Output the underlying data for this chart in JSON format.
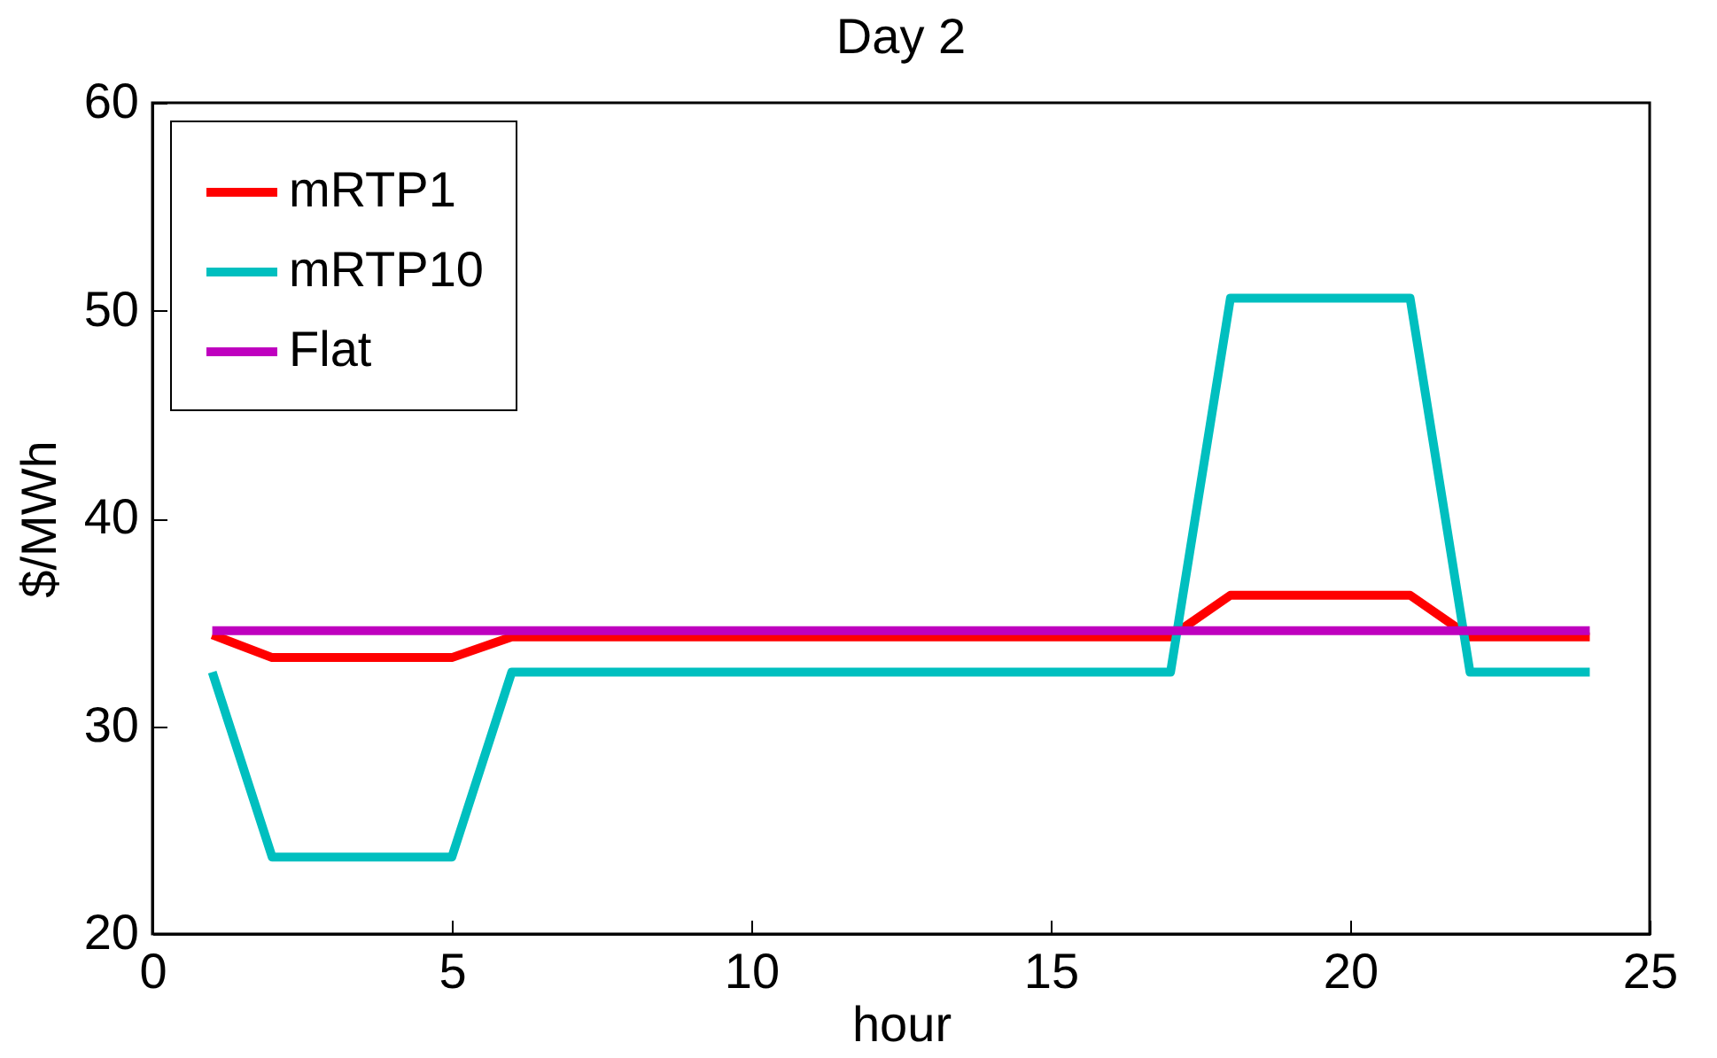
{
  "chart_data": {
    "type": "line",
    "title": "Day 2",
    "xlabel": "hour",
    "ylabel": "$/MWh",
    "x": [
      1,
      2,
      3,
      4,
      5,
      6,
      7,
      8,
      9,
      10,
      11,
      12,
      13,
      14,
      15,
      16,
      17,
      18,
      19,
      20,
      21,
      22,
      23,
      24
    ],
    "series": [
      {
        "name": "mRTP1",
        "color": "#ff0000",
        "values": [
          34.4,
          33.3,
          33.3,
          33.3,
          33.3,
          34.3,
          34.3,
          34.3,
          34.3,
          34.3,
          34.3,
          34.3,
          34.3,
          34.3,
          34.3,
          34.3,
          34.3,
          36.3,
          36.3,
          36.3,
          36.3,
          34.3,
          34.3,
          34.3
        ]
      },
      {
        "name": "mRTP10",
        "color": "#00bfbf",
        "values": [
          32.6,
          23.7,
          23.7,
          23.7,
          23.7,
          32.6,
          32.6,
          32.6,
          32.6,
          32.6,
          32.6,
          32.6,
          32.6,
          32.6,
          32.6,
          32.6,
          32.6,
          50.6,
          50.6,
          50.6,
          50.6,
          32.6,
          32.6,
          32.6
        ]
      },
      {
        "name": "Flat",
        "color": "#bf00bf",
        "values": [
          34.6,
          34.6,
          34.6,
          34.6,
          34.6,
          34.6,
          34.6,
          34.6,
          34.6,
          34.6,
          34.6,
          34.6,
          34.6,
          34.6,
          34.6,
          34.6,
          34.6,
          34.6,
          34.6,
          34.6,
          34.6,
          34.6,
          34.6,
          34.6
        ]
      }
    ],
    "xlim": [
      0,
      25
    ],
    "xticks": [
      0,
      5,
      10,
      15,
      20,
      25
    ],
    "ylim": [
      20,
      60
    ],
    "yticks": [
      20,
      30,
      40,
      50,
      60
    ],
    "grid": false,
    "legend": "top left",
    "line_style": "solid",
    "marker": "none"
  }
}
